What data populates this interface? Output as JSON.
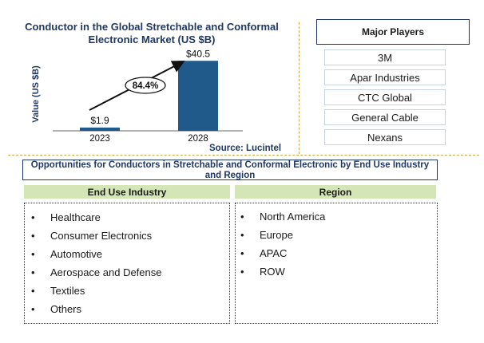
{
  "chart_data": {
    "type": "bar",
    "title": "Conductor in the Global Stretchable and Conformal Electronic Market (US $B)",
    "ylabel": "Value (US $B)",
    "xlabel": "",
    "categories": [
      "2023",
      "2028"
    ],
    "values": [
      1.9,
      40.5
    ],
    "data_labels": [
      "$1.9",
      "$40.5"
    ],
    "ylim": [
      0,
      48
    ],
    "annotation": "84.4%",
    "source": "Source: Lucintel",
    "bar_color": "#1f5a8a"
  },
  "major_players": {
    "title": "Major Players",
    "items": [
      "3M",
      "Apar Industries",
      "CTC Global",
      "General Cable",
      "Nexans"
    ]
  },
  "opportunities": {
    "title": "Opportunities for Conductors in Stretchable and Conformal Electronic by End Use Industry and Region",
    "end_use": {
      "heading": "End Use Industry",
      "items": [
        "Healthcare",
        "Consumer Electronics",
        "Automotive",
        "Aerospace and Defense",
        "Textiles",
        "Others"
      ]
    },
    "region": {
      "heading": "Region",
      "items": [
        "North America",
        "Europe",
        "APAC",
        "ROW"
      ]
    },
    "bullet": "•"
  },
  "colors": {
    "accent": "#1f3864",
    "divider": "#d4a84a",
    "header_fill": "#d4e6b5"
  }
}
